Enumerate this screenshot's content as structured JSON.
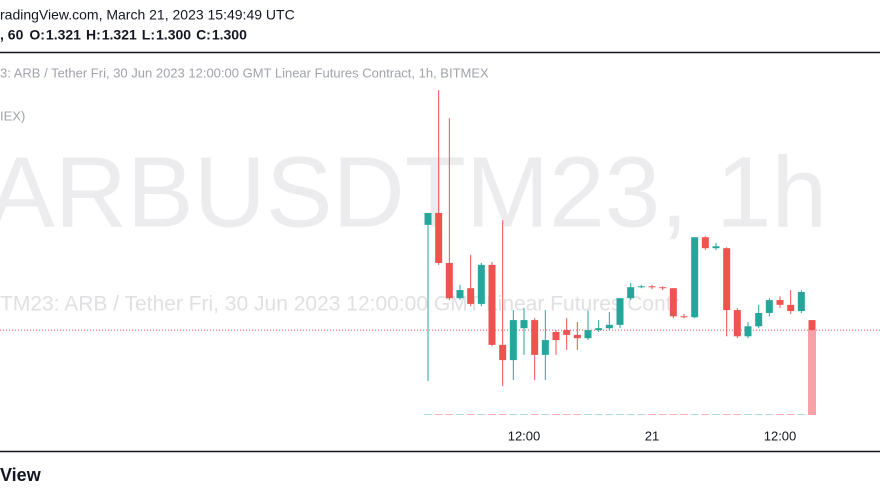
{
  "header": {
    "line1": "radingView.com, March 21, 2023 15:49:49 UTC",
    "line2": ", 60",
    "ohlc": [
      "O:",
      "1.321",
      "H:",
      "1.321",
      "L:",
      "1.300",
      "C:",
      "1.300"
    ]
  },
  "chart_data": {
    "type": "candlestick",
    "legend_text": "3: ARB / Tether Fri, 30 Jun 2023 12:00:00 GMT Linear Futures Contract, 1h, BITMEX",
    "legend_text_2": "IEX)",
    "watermark": "ARBUSDTM23, 1h",
    "watermark_subtitle": "TM23: ARB / Tether Fri, 30 Jun 2023 12:00:00 GMT Linear Futures Contr",
    "categories": [
      null,
      null,
      null,
      null,
      null,
      null,
      null,
      null,
      null,
      "12:00",
      null,
      null,
      null,
      null,
      null,
      null,
      null,
      null,
      null,
      null,
      null,
      "21",
      null,
      null,
      null,
      null,
      null,
      null,
      null,
      null,
      null,
      null,
      null,
      "12:00",
      null,
      null,
      null
    ],
    "open": [
      1.521,
      1.546,
      1.441,
      1.367,
      1.388,
      1.355,
      1.437,
      1.269,
      1.237,
      1.304,
      1.321,
      1.248,
      1.296,
      1.3,
      1.29,
      1.283,
      1.3,
      1.304,
      1.311,
      1.367,
      1.39,
      1.392,
      1.39,
      1.388,
      1.329,
      1.327,
      1.495,
      1.472,
      1.472,
      1.342,
      1.287,
      1.308,
      1.336,
      1.363,
      1.353,
      1.34,
      1.321
    ],
    "high": [
      1.546,
      1.804,
      1.745,
      1.395,
      1.458,
      1.441,
      1.443,
      1.531,
      1.342,
      1.346,
      1.325,
      1.342,
      1.3,
      1.325,
      1.317,
      1.342,
      1.321,
      1.338,
      1.367,
      1.399,
      1.395,
      1.395,
      1.392,
      1.388,
      1.334,
      1.495,
      1.497,
      1.483,
      1.474,
      1.346,
      1.317,
      1.353,
      1.367,
      1.371,
      1.384,
      1.384,
      1.321
    ],
    "low": [
      1.193,
      1.437,
      1.363,
      1.363,
      1.35,
      1.35,
      1.266,
      1.182,
      1.195,
      1.248,
      1.195,
      1.195,
      1.248,
      1.258,
      1.258,
      1.279,
      1.296,
      1.3,
      1.304,
      1.363,
      1.388,
      1.386,
      1.384,
      1.325,
      1.325,
      1.325,
      1.468,
      1.468,
      1.287,
      1.283,
      1.283,
      1.304,
      1.329,
      1.346,
      1.334,
      1.336,
      1.3
    ],
    "close": [
      1.546,
      1.441,
      1.367,
      1.384,
      1.355,
      1.437,
      1.269,
      1.237,
      1.321,
      1.321,
      1.248,
      1.279,
      1.279,
      1.29,
      1.283,
      1.3,
      1.304,
      1.311,
      1.367,
      1.39,
      1.392,
      1.39,
      1.388,
      1.329,
      1.327,
      1.495,
      1.472,
      1.476,
      1.342,
      1.287,
      1.308,
      1.336,
      1.363,
      1.353,
      1.34,
      1.38,
      1.3
    ],
    "volume": [
      1,
      1,
      1,
      1,
      1,
      1,
      1,
      1,
      1,
      1,
      1,
      1,
      1,
      1,
      1,
      1,
      1,
      1,
      1,
      1,
      1,
      1,
      1,
      1,
      1,
      1,
      1,
      1,
      1,
      1,
      1,
      1,
      1,
      1,
      1,
      1,
      100
    ],
    "ylim": [
      1.044,
      1.884
    ],
    "vlim": [
      0,
      100
    ],
    "up_color": "#26a69a",
    "down_color": "#ef5350",
    "volume_up_color": "#a3d9d3",
    "volume_down_color": "#f7a1a9"
  },
  "footer": {
    "brand": "View"
  }
}
